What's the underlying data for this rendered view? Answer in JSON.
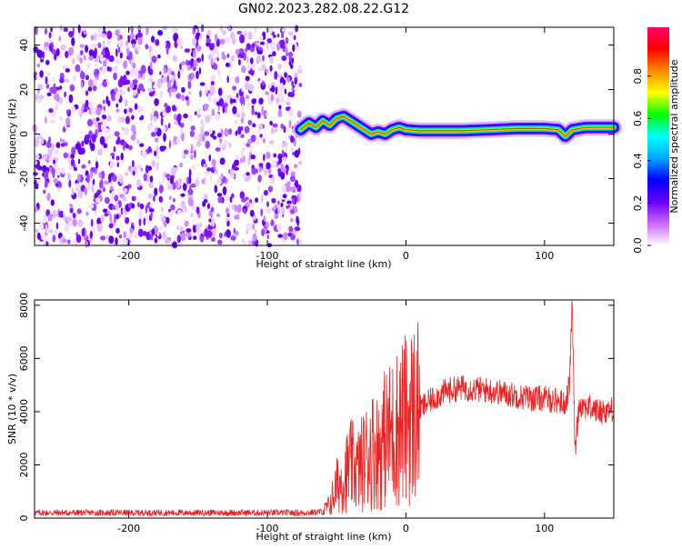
{
  "title": "GN02.2023.282.08.22.G12",
  "chart_data": [
    {
      "type": "heatmap",
      "xlabel": "Height of straight line (km)",
      "ylabel": "Frequency (Hz)",
      "xlim": [
        -268,
        150
      ],
      "ylim": [
        -50,
        48
      ],
      "x_ticks": [
        -200,
        -100,
        0,
        100
      ],
      "y_ticks": [
        -40,
        -20,
        0,
        20,
        40
      ],
      "noise_region_x": [
        -268,
        -76
      ],
      "ridge": {
        "x": [
          -76,
          -70,
          -65,
          -60,
          -55,
          -50,
          -45,
          -40,
          -35,
          -30,
          -25,
          -20,
          -15,
          -10,
          -5,
          0,
          10,
          20,
          40,
          60,
          80,
          100,
          110,
          115,
          120,
          130,
          150
        ],
        "y": [
          2,
          5,
          3,
          6,
          4,
          7,
          8,
          6,
          4,
          2,
          0,
          1,
          0,
          2,
          3,
          2,
          1.5,
          1.5,
          1.5,
          2,
          2.5,
          2.5,
          2,
          -1,
          2,
          3,
          3
        ]
      },
      "colorbar": {
        "label": "Normalized spectral amplitude",
        "range": [
          0,
          1
        ],
        "ticks": [
          "0.0",
          "0.2",
          "0.4",
          "0.6",
          "0.8"
        ],
        "colors": [
          "#ffffff",
          "#cc66ff",
          "#6a00ff",
          "#0000ff",
          "#00aaff",
          "#00ffff",
          "#00ff00",
          "#ffff00",
          "#ff8800",
          "#ff0000",
          "#ff0066"
        ]
      }
    },
    {
      "type": "line",
      "xlabel": "Height of straight line (km)",
      "ylabel": "SNR (10 * v/v)",
      "xlim": [
        -268,
        150
      ],
      "ylim": [
        0,
        8200
      ],
      "x_ticks": [
        -200,
        -100,
        0,
        100
      ],
      "y_ticks": [
        0,
        2000,
        4000,
        6000,
        8000
      ],
      "color": "#ee2222",
      "series": [
        {
          "x": [
            -268,
            -240,
            -200,
            -160,
            -120,
            -90,
            -70,
            -60,
            -55,
            -50,
            -45,
            -40,
            -35,
            -30,
            -25,
            -20,
            -15,
            -10,
            -5,
            0,
            10,
            20,
            30,
            40,
            50,
            60,
            70,
            80,
            90,
            100,
            110,
            115,
            118,
            120,
            122,
            125,
            130,
            140,
            150
          ],
          "values": [
            200,
            200,
            200,
            200,
            200,
            200,
            200,
            250,
            500,
            1200,
            1500,
            2000,
            1800,
            2200,
            2600,
            2500,
            3000,
            3200,
            3500,
            3700,
            4100,
            4500,
            4800,
            4900,
            4850,
            4800,
            4700,
            4600,
            4500,
            4500,
            4400,
            4300,
            5000,
            8200,
            2500,
            4300,
            4200,
            4000,
            4100
          ]
        }
      ]
    }
  ]
}
